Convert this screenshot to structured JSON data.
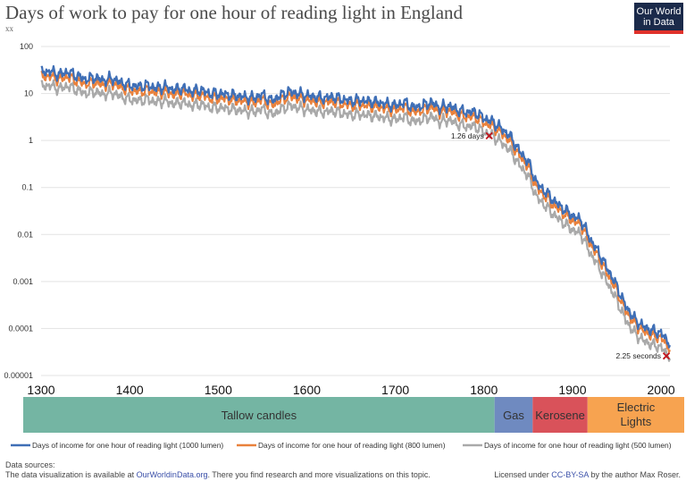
{
  "header": {
    "title": "Days of work to pay for one hour of reading light in England",
    "subtitle": "xx"
  },
  "logo": {
    "line1": "Our World",
    "line2": "in Data"
  },
  "chart_data": {
    "type": "line",
    "title": "Days of work to pay for one hour of reading light in England",
    "x_range": [
      1300,
      2010
    ],
    "y_scale": "log",
    "y_range": [
      1e-05,
      100
    ],
    "x_ticks": [
      "1300",
      "1400",
      "1500",
      "1600",
      "1700",
      "1800",
      "1900",
      "2000"
    ],
    "y_ticks": [
      "100",
      "10",
      "1",
      "0.1",
      "0.01",
      "0.001",
      "0.0001",
      "0.00001"
    ],
    "grid": true,
    "legend_position": "bottom",
    "series": [
      {
        "name": "Days of income for one hour of reading light (1000 lumen)",
        "color": "#3f6fb6",
        "points": [
          [
            1300,
            28
          ],
          [
            1310,
            30
          ],
          [
            1320,
            25
          ],
          [
            1330,
            29
          ],
          [
            1340,
            24
          ],
          [
            1350,
            20
          ],
          [
            1360,
            22
          ],
          [
            1370,
            19
          ],
          [
            1380,
            21
          ],
          [
            1390,
            17
          ],
          [
            1400,
            15
          ],
          [
            1410,
            14
          ],
          [
            1420,
            15
          ],
          [
            1430,
            13
          ],
          [
            1440,
            14
          ],
          [
            1450,
            12
          ],
          [
            1460,
            13
          ],
          [
            1470,
            11
          ],
          [
            1480,
            12
          ],
          [
            1490,
            10
          ],
          [
            1500,
            10
          ],
          [
            1510,
            9.5
          ],
          [
            1520,
            9
          ],
          [
            1530,
            8.5
          ],
          [
            1540,
            8
          ],
          [
            1550,
            9.5
          ],
          [
            1560,
            7
          ],
          [
            1570,
            9
          ],
          [
            1580,
            11
          ],
          [
            1590,
            10
          ],
          [
            1600,
            9
          ],
          [
            1610,
            8.5
          ],
          [
            1620,
            8
          ],
          [
            1630,
            8.5
          ],
          [
            1640,
            7.5
          ],
          [
            1650,
            7
          ],
          [
            1660,
            7.2
          ],
          [
            1670,
            6.8
          ],
          [
            1680,
            6.5
          ],
          [
            1690,
            6
          ],
          [
            1700,
            5.5
          ],
          [
            1710,
            6.5
          ],
          [
            1720,
            5
          ],
          [
            1730,
            5.5
          ],
          [
            1740,
            6.5
          ],
          [
            1750,
            5
          ],
          [
            1760,
            5.5
          ],
          [
            1770,
            4.5
          ],
          [
            1780,
            4
          ],
          [
            1790,
            4
          ],
          [
            1800,
            3
          ],
          [
            1810,
            2.5
          ],
          [
            1820,
            1.8
          ],
          [
            1830,
            1.2
          ],
          [
            1840,
            0.6
          ],
          [
            1850,
            0.35
          ],
          [
            1860,
            0.12
          ],
          [
            1870,
            0.08
          ],
          [
            1880,
            0.05
          ],
          [
            1890,
            0.035
          ],
          [
            1900,
            0.025
          ],
          [
            1910,
            0.02
          ],
          [
            1920,
            0.008
          ],
          [
            1930,
            0.004
          ],
          [
            1940,
            0.0018
          ],
          [
            1950,
            0.0008
          ],
          [
            1960,
            0.0003
          ],
          [
            1970,
            0.00016
          ],
          [
            1980,
            0.00011
          ],
          [
            1990,
            9e-05
          ],
          [
            2000,
            8e-05
          ],
          [
            2005,
            6e-05
          ],
          [
            2010,
            5e-05
          ]
        ]
      },
      {
        "name": "Days of income for one hour of reading light (800 lumen)",
        "color": "#e9813c",
        "points": [
          [
            1300,
            22
          ],
          [
            1310,
            24
          ],
          [
            1320,
            20
          ],
          [
            1330,
            23
          ],
          [
            1340,
            19
          ],
          [
            1350,
            16
          ],
          [
            1360,
            17.5
          ],
          [
            1370,
            15
          ],
          [
            1380,
            17
          ],
          [
            1390,
            13.5
          ],
          [
            1400,
            12
          ],
          [
            1410,
            11
          ],
          [
            1420,
            12
          ],
          [
            1430,
            10.5
          ],
          [
            1440,
            11
          ],
          [
            1450,
            9.5
          ],
          [
            1460,
            10.5
          ],
          [
            1470,
            9
          ],
          [
            1480,
            9.5
          ],
          [
            1490,
            8
          ],
          [
            1500,
            8
          ],
          [
            1510,
            7.6
          ],
          [
            1520,
            7.2
          ],
          [
            1530,
            6.8
          ],
          [
            1540,
            6.4
          ],
          [
            1550,
            7.6
          ],
          [
            1560,
            5.6
          ],
          [
            1570,
            7.2
          ],
          [
            1580,
            8.8
          ],
          [
            1590,
            8
          ],
          [
            1600,
            7.2
          ],
          [
            1610,
            6.8
          ],
          [
            1620,
            6.4
          ],
          [
            1630,
            6.8
          ],
          [
            1640,
            6
          ],
          [
            1650,
            5.6
          ],
          [
            1660,
            5.8
          ],
          [
            1670,
            5.4
          ],
          [
            1680,
            5.2
          ],
          [
            1690,
            4.8
          ],
          [
            1700,
            4.4
          ],
          [
            1710,
            5.2
          ],
          [
            1720,
            4
          ],
          [
            1730,
            4.4
          ],
          [
            1740,
            5.2
          ],
          [
            1750,
            4
          ],
          [
            1760,
            4.4
          ],
          [
            1770,
            3.6
          ],
          [
            1780,
            3.2
          ],
          [
            1790,
            3.2
          ],
          [
            1800,
            2.4
          ],
          [
            1810,
            2
          ],
          [
            1820,
            1.45
          ],
          [
            1830,
            0.95
          ],
          [
            1840,
            0.48
          ],
          [
            1850,
            0.28
          ],
          [
            1860,
            0.095
          ],
          [
            1870,
            0.064
          ],
          [
            1880,
            0.04
          ],
          [
            1890,
            0.028
          ],
          [
            1900,
            0.02
          ],
          [
            1910,
            0.016
          ],
          [
            1920,
            0.0064
          ],
          [
            1930,
            0.0032
          ],
          [
            1940,
            0.0014
          ],
          [
            1950,
            0.00064
          ],
          [
            1960,
            0.00024
          ],
          [
            1970,
            0.00013
          ],
          [
            1980,
            8.8e-05
          ],
          [
            1990,
            7.2e-05
          ],
          [
            2000,
            6.4e-05
          ],
          [
            2005,
            4.8e-05
          ],
          [
            2010,
            4e-05
          ]
        ]
      },
      {
        "name": "Days of income for one hour of reading light (500 lumen)",
        "color": "#a9a9a9",
        "points": [
          [
            1300,
            14
          ],
          [
            1310,
            15
          ],
          [
            1320,
            12.5
          ],
          [
            1330,
            14.5
          ],
          [
            1340,
            12
          ],
          [
            1350,
            10
          ],
          [
            1360,
            11
          ],
          [
            1370,
            9.5
          ],
          [
            1380,
            10.5
          ],
          [
            1390,
            8.5
          ],
          [
            1400,
            7.5
          ],
          [
            1410,
            7
          ],
          [
            1420,
            7.5
          ],
          [
            1430,
            6.5
          ],
          [
            1440,
            7
          ],
          [
            1450,
            6
          ],
          [
            1460,
            6.5
          ],
          [
            1470,
            5.5
          ],
          [
            1480,
            6
          ],
          [
            1490,
            5
          ],
          [
            1500,
            5
          ],
          [
            1510,
            4.75
          ],
          [
            1520,
            4.5
          ],
          [
            1530,
            4.25
          ],
          [
            1540,
            4
          ],
          [
            1550,
            4.75
          ],
          [
            1560,
            3.5
          ],
          [
            1570,
            4.5
          ],
          [
            1580,
            5.5
          ],
          [
            1590,
            5
          ],
          [
            1600,
            4.5
          ],
          [
            1610,
            4.25
          ],
          [
            1620,
            4
          ],
          [
            1630,
            4.25
          ],
          [
            1640,
            3.75
          ],
          [
            1650,
            3.5
          ],
          [
            1660,
            3.6
          ],
          [
            1670,
            3.4
          ],
          [
            1680,
            3.25
          ],
          [
            1690,
            3
          ],
          [
            1700,
            2.75
          ],
          [
            1710,
            3.25
          ],
          [
            1720,
            2.5
          ],
          [
            1730,
            2.75
          ],
          [
            1740,
            3.25
          ],
          [
            1750,
            2.5
          ],
          [
            1760,
            2.75
          ],
          [
            1770,
            2.25
          ],
          [
            1780,
            2
          ],
          [
            1790,
            2
          ],
          [
            1800,
            1.5
          ],
          [
            1810,
            1.26
          ],
          [
            1820,
            0.9
          ],
          [
            1830,
            0.6
          ],
          [
            1840,
            0.3
          ],
          [
            1850,
            0.175
          ],
          [
            1860,
            0.06
          ],
          [
            1870,
            0.04
          ],
          [
            1880,
            0.025
          ],
          [
            1890,
            0.0175
          ],
          [
            1900,
            0.0125
          ],
          [
            1910,
            0.01
          ],
          [
            1920,
            0.004
          ],
          [
            1930,
            0.002
          ],
          [
            1940,
            0.0009
          ],
          [
            1950,
            0.0004
          ],
          [
            1960,
            0.00015
          ],
          [
            1970,
            8e-05
          ],
          [
            1980,
            5.5e-05
          ],
          [
            1990,
            4.5e-05
          ],
          [
            2000,
            4e-05
          ],
          [
            2005,
            3e-05
          ],
          [
            2010,
            2.6e-05
          ]
        ]
      }
    ],
    "annotations": [
      {
        "text": "1.26 days",
        "x": 1806,
        "y": 1.26
      },
      {
        "text": "2.25 seconds",
        "x": 2006,
        "y": 2.6e-05
      }
    ],
    "eras": [
      {
        "label": "Tallow candles",
        "start": 1280,
        "end": 1812,
        "color": "#74b5a3"
      },
      {
        "label": "Gas",
        "start": 1812,
        "end": 1855,
        "color": "#6f8ac0"
      },
      {
        "label": "Kerosene",
        "start": 1855,
        "end": 1917,
        "color": "#d9525a"
      },
      {
        "label": "Electric Lights",
        "start": 1917,
        "end": 2018,
        "color": "#f7a350"
      }
    ]
  },
  "footer": {
    "sources_label": "Data sources:",
    "note_prefix": "The data visualization is available at ",
    "note_link": "OurWorldinData.org",
    "note_suffix": ". There you find research and more visualizations on this topic.",
    "license_prefix": "Licensed under ",
    "license_link": "CC-BY-SA",
    "license_suffix": " by the author Max Roser."
  }
}
